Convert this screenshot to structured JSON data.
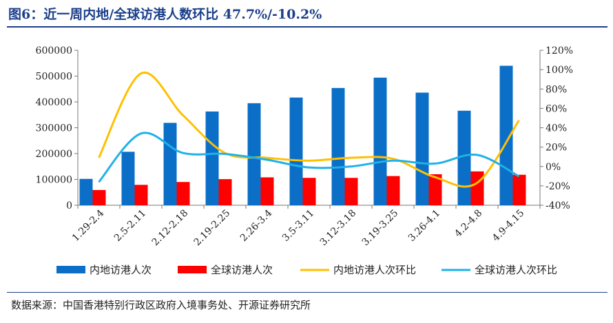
{
  "title": "图6：近一周内地/全球访港人数环比 47.7%/-10.2%",
  "source": "数据来源：中国香港特别行政区政府入境事务处、开源证券研究所",
  "chart_data": {
    "type": "bar",
    "categories": [
      "1.29-2.4",
      "2.5-2.11",
      "2.12-2.18",
      "2.19-2.25",
      "2.26-3.4",
      "3.5-3.11",
      "3.12-3.18",
      "3.19-3.25",
      "3.26-4.1",
      "4.2-4.8",
      "4.9-4.15"
    ],
    "series": [
      {
        "name": "内地访港人次",
        "type": "bar",
        "axis": "left",
        "color": "#0b6fc7",
        "values": [
          102000,
          207000,
          319000,
          363000,
          395000,
          417000,
          454000,
          494000,
          436000,
          366000,
          540000
        ]
      },
      {
        "name": "全球访港人次",
        "type": "bar",
        "axis": "left",
        "color": "#ff0000",
        "values": [
          59000,
          79000,
          90000,
          101000,
          108000,
          106000,
          106000,
          113000,
          120000,
          131000,
          118000
        ]
      },
      {
        "name": "内地访港人次环比",
        "type": "line",
        "axis": "right",
        "color": "#ffc000",
        "values": [
          9,
          96,
          53,
          14,
          9,
          6,
          9,
          8,
          -11,
          -17,
          47.7
        ]
      },
      {
        "name": "全球访港人次环比",
        "type": "line",
        "axis": "right",
        "color": "#1fb1e8",
        "values": [
          -16,
          34,
          14,
          13,
          7,
          -1,
          0,
          6,
          3,
          12,
          -10.2
        ]
      }
    ],
    "y_left": {
      "min": 0,
      "max": 600000,
      "ticks": [
        "0",
        "100000",
        "200000",
        "300000",
        "400000",
        "500000",
        "600000"
      ]
    },
    "y_right": {
      "min": -40,
      "max": 120,
      "ticks": [
        "-40%",
        "-20%",
        "0%",
        "20%",
        "40%",
        "60%",
        "80%",
        "100%",
        "120%"
      ]
    },
    "grid": false,
    "legend": "bottom"
  }
}
